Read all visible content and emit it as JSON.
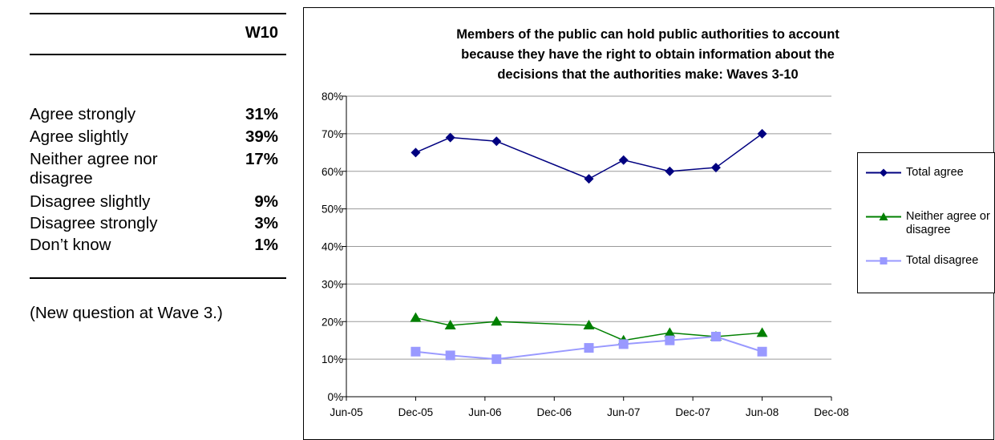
{
  "table": {
    "wave_header": "W10",
    "rows": [
      {
        "label": "Agree strongly",
        "value": "31%"
      },
      {
        "label": "Agree slightly",
        "value": "39%"
      },
      {
        "label": "Neither agree nor disagree",
        "value": "17%"
      },
      {
        "label": "Disagree slightly",
        "value": "9%"
      },
      {
        "label": "Disagree strongly",
        "value": "3%"
      },
      {
        "label": "Don’t know",
        "value": "1%"
      }
    ],
    "note": "(New question at Wave 3.)"
  },
  "chart_data": {
    "type": "line",
    "title": "Members of the public can hold public authorities to account because they have the right to obtain information about the decisions that the authorities make: Waves 3-10",
    "title_lines": [
      "Members of the public can hold public authorities to account",
      "because they have the right to obtain information about the",
      "decisions that the authorities make: Waves 3-10"
    ],
    "xlabel": "",
    "ylabel": "",
    "x_ticks": [
      "Jun-05",
      "Dec-05",
      "Jun-06",
      "Dec-06",
      "Jun-07",
      "Dec-07",
      "Jun-08",
      "Dec-08"
    ],
    "y_ticks": [
      "0%",
      "10%",
      "20%",
      "30%",
      "40%",
      "50%",
      "60%",
      "70%",
      "80%"
    ],
    "ylim": [
      0,
      80
    ],
    "xlim": [
      "2005-06",
      "2008-12"
    ],
    "x": [
      "2005-12",
      "2006-03",
      "2006-07",
      "2007-03",
      "2007-06",
      "2007-10",
      "2008-02",
      "2008-06"
    ],
    "series": [
      {
        "name": "Total agree",
        "values": [
          65,
          69,
          68,
          58,
          63,
          60,
          61,
          70
        ],
        "color": "#000080",
        "marker": "diamond"
      },
      {
        "name": "Neither agree or disagree",
        "values": [
          21,
          19,
          20,
          19,
          15,
          17,
          16,
          17
        ],
        "color": "#008000",
        "marker": "triangle"
      },
      {
        "name": "Total disagree",
        "values": [
          12,
          11,
          10,
          13,
          14,
          15,
          16,
          12
        ],
        "color": "#9999FF",
        "marker": "square"
      }
    ],
    "grid": true,
    "legend_position": "right"
  }
}
